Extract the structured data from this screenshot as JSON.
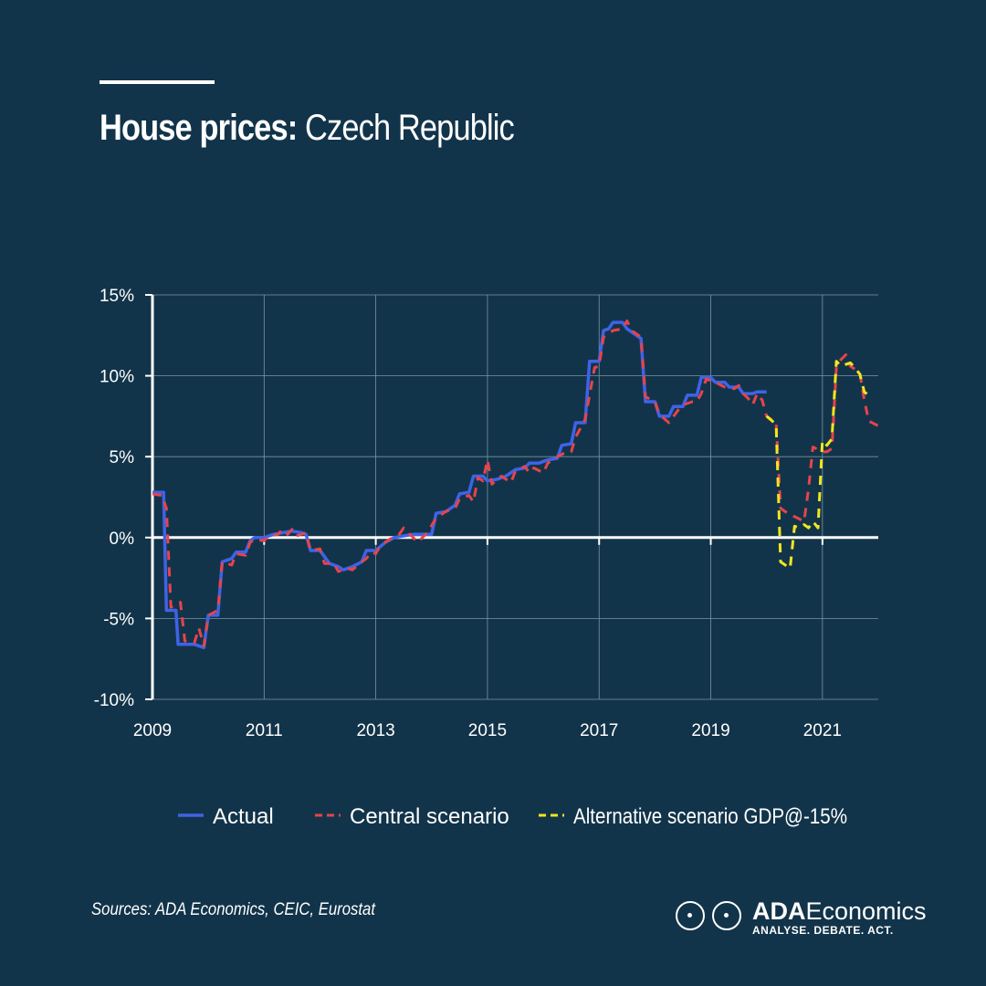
{
  "title": {
    "bold": "House prices:",
    "regular": " Czech Republic"
  },
  "sources": "Sources: ADA Economics, CEIC, Eurostat",
  "logo": {
    "name_bold": "ADA",
    "name_regular": "Economics",
    "tagline": "ANALYSE. DEBATE. ACT."
  },
  "chart_data": {
    "type": "line",
    "xlim": [
      2009,
      2022
    ],
    "ylim": [
      -10,
      15
    ],
    "x_ticks": [
      2009,
      2011,
      2013,
      2015,
      2017,
      2019,
      2021
    ],
    "x_tick_labels": [
      "2009",
      "2011",
      "2013",
      "2015",
      "2017",
      "2019",
      "2021"
    ],
    "y_ticks": [
      -10,
      -5,
      0,
      5,
      10,
      15
    ],
    "y_tick_labels": [
      "-10%",
      "-5%",
      "0%",
      "5%",
      "10%",
      "15%"
    ],
    "grid": true,
    "legend_position": "bottom",
    "series": [
      {
        "name": "Actual",
        "color": "#3f63e6",
        "style": "solid",
        "points": [
          [
            2009.0,
            2.8
          ],
          [
            2009.2,
            2.8
          ],
          [
            2009.25,
            -4.5
          ],
          [
            2009.42,
            -4.5
          ],
          [
            2009.46,
            -6.6
          ],
          [
            2009.75,
            -6.6
          ],
          [
            2009.92,
            -6.8
          ],
          [
            2010.0,
            -4.8
          ],
          [
            2010.17,
            -4.8
          ],
          [
            2010.25,
            -1.5
          ],
          [
            2010.42,
            -1.3
          ],
          [
            2010.5,
            -0.9
          ],
          [
            2010.67,
            -0.9
          ],
          [
            2010.75,
            -0.2
          ],
          [
            2010.83,
            0.0
          ],
          [
            2011.0,
            0.0
          ],
          [
            2011.17,
            0.2
          ],
          [
            2011.33,
            0.3
          ],
          [
            2011.5,
            0.4
          ],
          [
            2011.67,
            0.3
          ],
          [
            2011.75,
            0.2
          ],
          [
            2011.83,
            -0.8
          ],
          [
            2012.0,
            -0.8
          ],
          [
            2012.17,
            -1.6
          ],
          [
            2012.33,
            -1.8
          ],
          [
            2012.42,
            -2.0
          ],
          [
            2012.58,
            -1.8
          ],
          [
            2012.75,
            -1.5
          ],
          [
            2012.83,
            -0.8
          ],
          [
            2013.0,
            -0.8
          ],
          [
            2013.17,
            -0.3
          ],
          [
            2013.33,
            0.0
          ],
          [
            2013.5,
            0.1
          ],
          [
            2013.67,
            0.2
          ],
          [
            2013.83,
            0.2
          ],
          [
            2014.0,
            0.2
          ],
          [
            2014.08,
            1.5
          ],
          [
            2014.25,
            1.6
          ],
          [
            2014.42,
            2.0
          ],
          [
            2014.5,
            2.7
          ],
          [
            2014.67,
            2.8
          ],
          [
            2014.75,
            3.8
          ],
          [
            2014.92,
            3.8
          ],
          [
            2015.0,
            3.5
          ],
          [
            2015.17,
            3.6
          ],
          [
            2015.33,
            3.8
          ],
          [
            2015.5,
            4.2
          ],
          [
            2015.67,
            4.3
          ],
          [
            2015.75,
            4.6
          ],
          [
            2015.92,
            4.6
          ],
          [
            2016.08,
            4.8
          ],
          [
            2016.25,
            4.9
          ],
          [
            2016.33,
            5.7
          ],
          [
            2016.5,
            5.8
          ],
          [
            2016.58,
            7.1
          ],
          [
            2016.75,
            7.1
          ],
          [
            2016.83,
            10.9
          ],
          [
            2017.0,
            10.9
          ],
          [
            2017.08,
            12.8
          ],
          [
            2017.17,
            12.9
          ],
          [
            2017.25,
            13.3
          ],
          [
            2017.42,
            13.3
          ],
          [
            2017.5,
            12.9
          ],
          [
            2017.67,
            12.5
          ],
          [
            2017.75,
            12.3
          ],
          [
            2017.83,
            8.4
          ],
          [
            2018.0,
            8.4
          ],
          [
            2018.08,
            7.5
          ],
          [
            2018.25,
            7.5
          ],
          [
            2018.33,
            8.1
          ],
          [
            2018.5,
            8.1
          ],
          [
            2018.58,
            8.8
          ],
          [
            2018.75,
            8.8
          ],
          [
            2018.83,
            9.9
          ],
          [
            2019.0,
            9.9
          ],
          [
            2019.08,
            9.6
          ],
          [
            2019.25,
            9.6
          ],
          [
            2019.33,
            9.3
          ],
          [
            2019.5,
            9.3
          ],
          [
            2019.58,
            8.9
          ],
          [
            2019.75,
            8.9
          ],
          [
            2019.83,
            9.0
          ],
          [
            2020.0,
            9.0
          ]
        ]
      },
      {
        "name": "Central scenario",
        "color": "#e8434b",
        "style": "dashed",
        "points": [
          [
            2009.0,
            2.7
          ],
          [
            2009.17,
            2.6
          ],
          [
            2009.25,
            1.8
          ],
          [
            2009.33,
            -4.3
          ],
          [
            2009.5,
            -4.0
          ],
          [
            2009.58,
            -6.4
          ],
          [
            2009.75,
            -6.5
          ],
          [
            2009.83,
            -5.6
          ],
          [
            2009.92,
            -6.7
          ],
          [
            2010.0,
            -4.8
          ],
          [
            2010.17,
            -4.5
          ],
          [
            2010.25,
            -1.5
          ],
          [
            2010.42,
            -1.7
          ],
          [
            2010.5,
            -1.0
          ],
          [
            2010.67,
            -1.1
          ],
          [
            2010.75,
            -0.3
          ],
          [
            2010.83,
            -0.1
          ],
          [
            2011.0,
            -0.2
          ],
          [
            2011.08,
            0.1
          ],
          [
            2011.25,
            0.2
          ],
          [
            2011.33,
            0.5
          ],
          [
            2011.42,
            0.2
          ],
          [
            2011.5,
            0.5
          ],
          [
            2011.58,
            0.1
          ],
          [
            2011.75,
            0.3
          ],
          [
            2011.83,
            -0.8
          ],
          [
            2012.0,
            -0.7
          ],
          [
            2012.08,
            -1.6
          ],
          [
            2012.25,
            -1.6
          ],
          [
            2012.33,
            -2.1
          ],
          [
            2012.5,
            -1.9
          ],
          [
            2012.58,
            -2.0
          ],
          [
            2012.75,
            -1.5
          ],
          [
            2012.83,
            -1.3
          ],
          [
            2012.92,
            -0.9
          ],
          [
            2013.0,
            -1.0
          ],
          [
            2013.08,
            -0.5
          ],
          [
            2013.25,
            -0.1
          ],
          [
            2013.42,
            0.2
          ],
          [
            2013.5,
            0.6
          ],
          [
            2013.58,
            0.3
          ],
          [
            2013.67,
            0.0
          ],
          [
            2013.75,
            -0.3
          ],
          [
            2013.92,
            0.3
          ],
          [
            2014.08,
            1.2
          ],
          [
            2014.25,
            1.6
          ],
          [
            2014.42,
            1.8
          ],
          [
            2014.5,
            2.4
          ],
          [
            2014.67,
            2.6
          ],
          [
            2014.75,
            2.2
          ],
          [
            2014.83,
            3.7
          ],
          [
            2014.92,
            3.5
          ],
          [
            2015.0,
            4.8
          ],
          [
            2015.08,
            3.3
          ],
          [
            2015.25,
            3.8
          ],
          [
            2015.42,
            3.4
          ],
          [
            2015.5,
            4.1
          ],
          [
            2015.67,
            4.4
          ],
          [
            2015.75,
            4.0
          ],
          [
            2015.83,
            4.3
          ],
          [
            2016.0,
            4.0
          ],
          [
            2016.08,
            4.6
          ],
          [
            2016.25,
            5.0
          ],
          [
            2016.42,
            5.3
          ],
          [
            2016.5,
            5.3
          ],
          [
            2016.58,
            6.2
          ],
          [
            2016.75,
            7.3
          ],
          [
            2016.92,
            10.5
          ],
          [
            2017.0,
            10.6
          ],
          [
            2017.08,
            12.4
          ],
          [
            2017.25,
            12.8
          ],
          [
            2017.42,
            12.9
          ],
          [
            2017.5,
            13.4
          ],
          [
            2017.58,
            12.8
          ],
          [
            2017.75,
            12.4
          ],
          [
            2017.83,
            8.7
          ],
          [
            2018.0,
            8.4
          ],
          [
            2018.08,
            7.6
          ],
          [
            2018.25,
            7.1
          ],
          [
            2018.42,
            7.9
          ],
          [
            2018.5,
            8.2
          ],
          [
            2018.67,
            8.4
          ],
          [
            2018.75,
            8.4
          ],
          [
            2018.83,
            8.9
          ],
          [
            2018.92,
            9.8
          ],
          [
            2019.08,
            9.6
          ],
          [
            2019.25,
            9.3
          ],
          [
            2019.42,
            9.2
          ],
          [
            2019.5,
            9.4
          ],
          [
            2019.58,
            8.9
          ],
          [
            2019.67,
            8.6
          ],
          [
            2019.75,
            8.2
          ],
          [
            2019.83,
            8.9
          ],
          [
            2019.92,
            8.5
          ],
          [
            2020.0,
            7.5
          ],
          [
            2020.17,
            7.1
          ],
          [
            2020.25,
            1.8
          ],
          [
            2020.42,
            1.4
          ],
          [
            2020.5,
            1.3
          ],
          [
            2020.67,
            1.0
          ],
          [
            2020.75,
            3.0
          ],
          [
            2020.83,
            5.6
          ],
          [
            2021.0,
            5.3
          ],
          [
            2021.08,
            5.3
          ],
          [
            2021.17,
            5.5
          ],
          [
            2021.25,
            10.5
          ],
          [
            2021.33,
            11.0
          ],
          [
            2021.42,
            11.3
          ],
          [
            2021.5,
            10.6
          ],
          [
            2021.67,
            10.2
          ],
          [
            2021.75,
            8.5
          ],
          [
            2021.83,
            7.2
          ],
          [
            2022.0,
            6.9
          ]
        ]
      },
      {
        "name": "Alternative scenario GDP@-15%",
        "color": "#f2e61e",
        "style": "dashed",
        "points": [
          [
            2020.0,
            7.5
          ],
          [
            2020.17,
            7.0
          ],
          [
            2020.25,
            -1.5
          ],
          [
            2020.42,
            -1.9
          ],
          [
            2020.5,
            0.7
          ],
          [
            2020.58,
            0.6
          ],
          [
            2020.67,
            0.8
          ],
          [
            2020.75,
            0.6
          ],
          [
            2020.83,
            1.0
          ],
          [
            2020.92,
            0.6
          ],
          [
            2021.0,
            6.0
          ],
          [
            2021.08,
            5.7
          ],
          [
            2021.17,
            6.1
          ],
          [
            2021.25,
            10.9
          ],
          [
            2021.33,
            10.6
          ],
          [
            2021.5,
            10.8
          ],
          [
            2021.58,
            10.5
          ],
          [
            2021.67,
            10.1
          ],
          [
            2021.75,
            9.0
          ],
          [
            2021.83,
            8.8
          ]
        ]
      }
    ]
  }
}
